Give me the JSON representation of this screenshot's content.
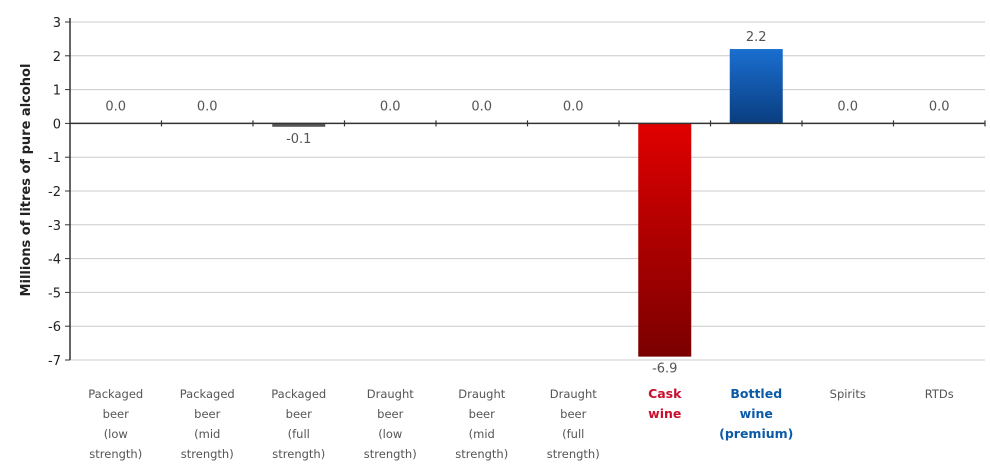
{
  "chart_data": {
    "type": "bar",
    "ylabel": "Millions of litres of pure alcohol",
    "ylim": [
      -7,
      3
    ],
    "yticks": [
      3,
      2,
      1,
      0,
      -1,
      -2,
      -3,
      -4,
      -5,
      -6,
      -7
    ],
    "grid": true,
    "categories": [
      {
        "lines": [
          "Packaged",
          "beer",
          "(low",
          "strength)"
        ],
        "style": "normal"
      },
      {
        "lines": [
          "Packaged",
          "beer",
          "(mid",
          "strength)"
        ],
        "style": "normal"
      },
      {
        "lines": [
          "Packaged",
          "beer",
          "(full",
          "strength)"
        ],
        "style": "normal"
      },
      {
        "lines": [
          "Draught",
          "beer",
          "(low",
          "strength)"
        ],
        "style": "normal"
      },
      {
        "lines": [
          "Draught",
          "beer",
          "(mid",
          "strength)"
        ],
        "style": "normal"
      },
      {
        "lines": [
          "Draught",
          "beer",
          "(full",
          "strength)"
        ],
        "style": "normal"
      },
      {
        "lines": [
          "Cask",
          "wine"
        ],
        "style": "negative"
      },
      {
        "lines": [
          "Bottled",
          "wine",
          "(premium)"
        ],
        "style": "positive"
      },
      {
        "lines": [
          "Spirits"
        ],
        "style": "normal"
      },
      {
        "lines": [
          "RTDs"
        ],
        "style": "normal"
      }
    ],
    "values": [
      0.0,
      0.0,
      -0.1,
      0.0,
      0.0,
      0.0,
      -6.9,
      2.2,
      0.0,
      0.0
    ],
    "value_labels": [
      "0.0",
      "0.0",
      "-0.1",
      "0.0",
      "0.0",
      "0.0",
      "-6.9",
      "2.2",
      "0.0",
      "0.0"
    ],
    "colors": {
      "negative_top": "#e00000",
      "negative_bottom": "#7a0000",
      "positive_top": "#1a6fd0",
      "positive_bottom": "#0a3d80",
      "small_bar": "#555555",
      "grid": "#cccccc",
      "axis": "#333333"
    }
  }
}
